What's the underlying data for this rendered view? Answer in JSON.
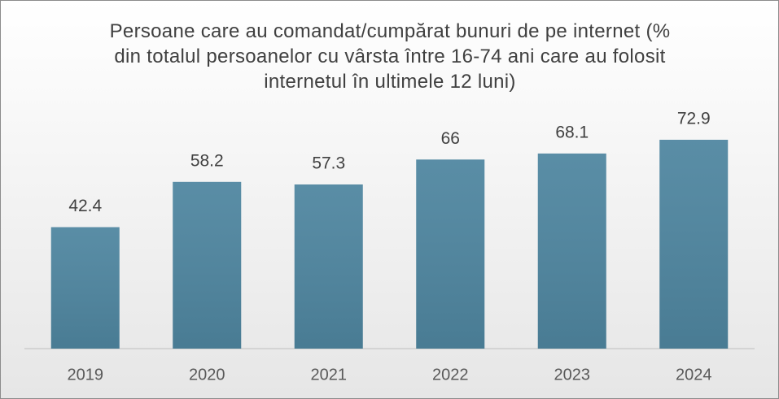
{
  "chart_data": {
    "type": "bar",
    "title": "Persoane care au comandat/cumpărat bunuri de pe internet (% din totalul persoanelor cu vârsta între 16-74 ani care au folosit internetul în ultimele 12 luni)",
    "categories": [
      "2019",
      "2020",
      "2021",
      "2022",
      "2023",
      "2024"
    ],
    "values": [
      42.4,
      58.2,
      57.3,
      66,
      68.1,
      72.9
    ],
    "color": "#4f86a0"
  }
}
